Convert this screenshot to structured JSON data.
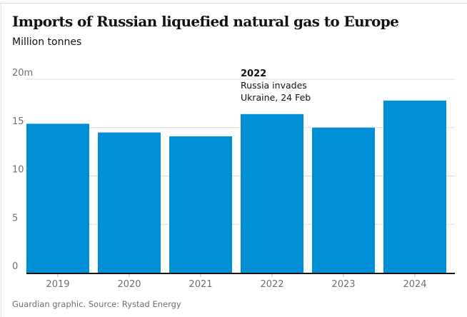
{
  "chart_data": {
    "type": "bar",
    "title": "Imports of Russian liquefied natural gas to Europe",
    "subtitle": "Million tonnes",
    "categories": [
      "2019",
      "2020",
      "2021",
      "2022",
      "2023",
      "2024"
    ],
    "values": [
      15.4,
      14.5,
      14.1,
      16.4,
      15.0,
      17.8
    ],
    "ylim": [
      0,
      20
    ],
    "yticks": [
      0,
      5,
      10,
      15,
      20
    ],
    "ytick_labels": [
      "0",
      "5",
      "10",
      "15",
      "20m"
    ],
    "grid": true,
    "bar_color": "#008fd5",
    "annotation": {
      "category": "2022",
      "title": "2022",
      "lines": [
        "Russia invades",
        "Ukraine, 24 Feb"
      ]
    },
    "source": "Guardian graphic. Source: Rystad Energy"
  }
}
